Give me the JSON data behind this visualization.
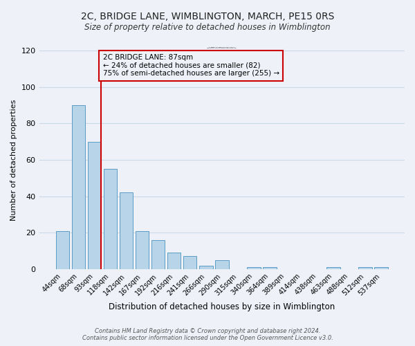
{
  "title": "2C, BRIDGE LANE, WIMBLINGTON, MARCH, PE15 0RS",
  "subtitle": "Size of property relative to detached houses in Wimblington",
  "xlabel": "Distribution of detached houses by size in Wimblington",
  "ylabel": "Number of detached properties",
  "bar_labels": [
    "44sqm",
    "68sqm",
    "93sqm",
    "118sqm",
    "142sqm",
    "167sqm",
    "192sqm",
    "216sqm",
    "241sqm",
    "266sqm",
    "290sqm",
    "315sqm",
    "340sqm",
    "364sqm",
    "389sqm",
    "414sqm",
    "438sqm",
    "463sqm",
    "488sqm",
    "512sqm",
    "537sqm"
  ],
  "bar_values": [
    21,
    90,
    70,
    55,
    42,
    21,
    16,
    9,
    7,
    2,
    5,
    0,
    1,
    1,
    0,
    0,
    0,
    1,
    0,
    1,
    1
  ],
  "bar_color": "#b8d4e8",
  "bar_edge_color": "#5a9cc5",
  "vline_color": "#cc0000",
  "vline_x_index": 2,
  "ylim": [
    0,
    120
  ],
  "yticks": [
    0,
    20,
    40,
    60,
    80,
    100,
    120
  ],
  "annotation_title": "2C BRIDGE LANE: 87sqm",
  "annotation_line1": "← 24% of detached houses are smaller (82)",
  "annotation_line2": "75% of semi-detached houses are larger (255) →",
  "annotation_box_color": "#cc0000",
  "footer_line1": "Contains HM Land Registry data © Crown copyright and database right 2024.",
  "footer_line2": "Contains public sector information licensed under the Open Government Licence v3.0.",
  "background_color": "#eef2f8",
  "grid_color": "#c8d8e8"
}
